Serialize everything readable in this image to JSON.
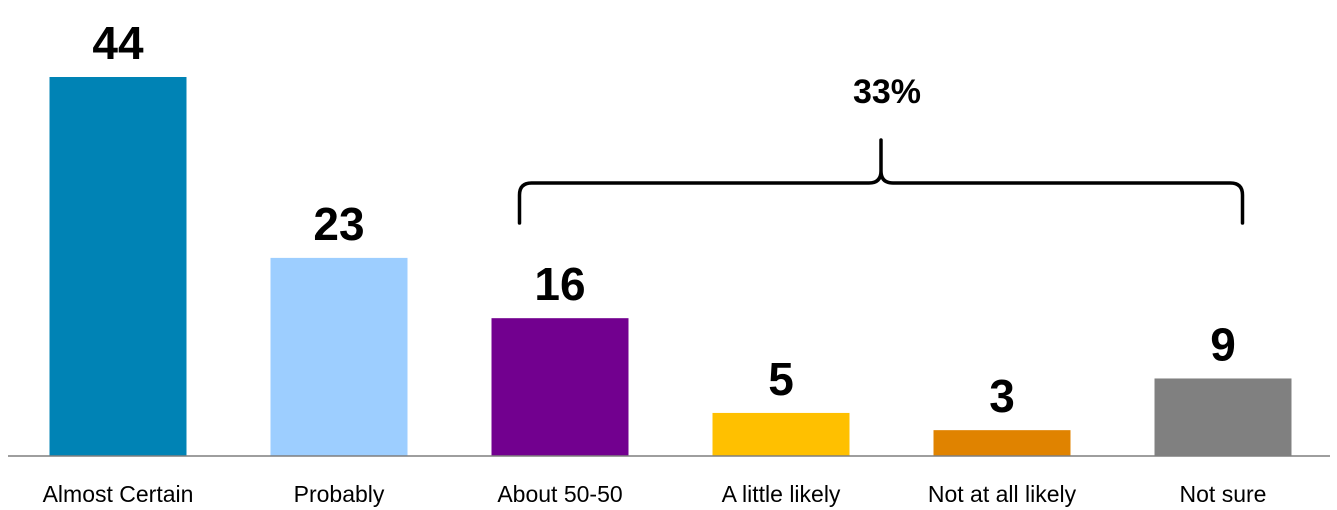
{
  "chart_data": {
    "type": "bar",
    "categories": [
      "Almost Certain",
      "Probably",
      "About 50-50",
      "A little likely",
      "Not at all likely",
      "Not sure"
    ],
    "values": [
      44,
      23,
      16,
      5,
      3,
      9
    ],
    "data_labels": [
      "44",
      "23",
      "16",
      "5",
      "3",
      "9"
    ],
    "colors": [
      "#0083B5",
      "#9DCEFF",
      "#72008F",
      "#FFC000",
      "#E08300",
      "#808080"
    ],
    "title": "",
    "xlabel": "",
    "ylabel": "",
    "ylim": [
      0,
      44
    ],
    "grid": false,
    "legend": "none",
    "annotation": {
      "type": "bracket",
      "label": "33%",
      "spans": [
        "About 50-50",
        "Not sure"
      ]
    }
  }
}
